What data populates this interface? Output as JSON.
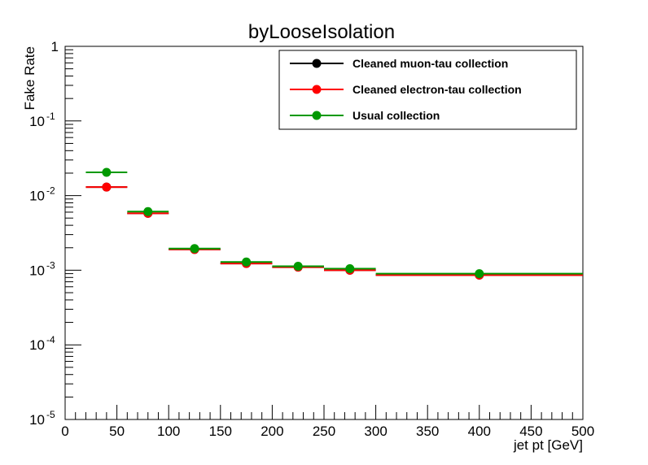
{
  "chart_data": {
    "type": "scatter",
    "title": "byLooseIsolation",
    "xlabel": "jet pt [GeV]",
    "ylabel": "Fake Rate",
    "xlim": [
      0,
      500
    ],
    "ylim": [
      1e-05,
      1
    ],
    "yscale": "log",
    "x_ticks": [
      0,
      50,
      100,
      150,
      200,
      250,
      300,
      350,
      400,
      450,
      500
    ],
    "y_ticks": [
      {
        "value": 1e-05,
        "base": "10",
        "exp": "-5"
      },
      {
        "value": 0.0001,
        "base": "10",
        "exp": "-4"
      },
      {
        "value": 0.001,
        "base": "10",
        "exp": "-3"
      },
      {
        "value": 0.01,
        "base": "10",
        "exp": "-2"
      },
      {
        "value": 0.1,
        "base": "10",
        "exp": "-1"
      },
      {
        "value": 1,
        "base": "1",
        "exp": ""
      }
    ],
    "legend_position": "top-right",
    "series": [
      {
        "name": "Cleaned muon-tau collection",
        "color": "#000000",
        "points": [
          {
            "x": 40,
            "xlo": 20,
            "xhi": 60,
            "y": 0.013
          },
          {
            "x": 80,
            "xlo": 60,
            "xhi": 100,
            "y": 0.0058
          },
          {
            "x": 125,
            "xlo": 100,
            "xhi": 150,
            "y": 0.0019
          },
          {
            "x": 175,
            "xlo": 150,
            "xhi": 200,
            "y": 0.00123
          },
          {
            "x": 225,
            "xlo": 200,
            "xhi": 250,
            "y": 0.0011
          },
          {
            "x": 275,
            "xlo": 250,
            "xhi": 300,
            "y": 0.001
          },
          {
            "x": 400,
            "xlo": 300,
            "xhi": 500,
            "y": 0.00086
          }
        ]
      },
      {
        "name": "Cleaned electron-tau collection",
        "color": "#ff0000",
        "points": [
          {
            "x": 40,
            "xlo": 20,
            "xhi": 60,
            "y": 0.013
          },
          {
            "x": 80,
            "xlo": 60,
            "xhi": 100,
            "y": 0.0058
          },
          {
            "x": 125,
            "xlo": 100,
            "xhi": 150,
            "y": 0.0019
          },
          {
            "x": 175,
            "xlo": 150,
            "xhi": 200,
            "y": 0.00123
          },
          {
            "x": 225,
            "xlo": 200,
            "xhi": 250,
            "y": 0.0011
          },
          {
            "x": 275,
            "xlo": 250,
            "xhi": 300,
            "y": 0.001
          },
          {
            "x": 400,
            "xlo": 300,
            "xhi": 500,
            "y": 0.00086
          }
        ]
      },
      {
        "name": "Usual collection",
        "color": "#009900",
        "points": [
          {
            "x": 40,
            "xlo": 20,
            "xhi": 60,
            "y": 0.0205
          },
          {
            "x": 80,
            "xlo": 60,
            "xhi": 100,
            "y": 0.0061
          },
          {
            "x": 125,
            "xlo": 100,
            "xhi": 150,
            "y": 0.00195
          },
          {
            "x": 175,
            "xlo": 150,
            "xhi": 200,
            "y": 0.00129
          },
          {
            "x": 225,
            "xlo": 200,
            "xhi": 250,
            "y": 0.00113
          },
          {
            "x": 275,
            "xlo": 250,
            "xhi": 300,
            "y": 0.00105
          },
          {
            "x": 400,
            "xlo": 300,
            "xhi": 500,
            "y": 0.0009
          }
        ]
      }
    ]
  }
}
